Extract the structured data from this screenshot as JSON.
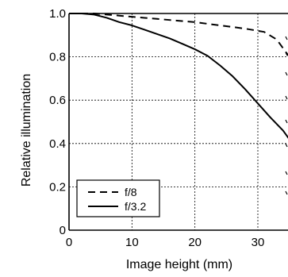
{
  "chart_data": {
    "type": "line",
    "xlabel": "Image height (mm)",
    "ylabel": "Relative illumination",
    "xlim": [
      0,
      35
    ],
    "ylim": [
      0,
      1.0
    ],
    "x_ticks": [
      "0",
      "10",
      "20",
      "30"
    ],
    "x_tick_values": [
      0,
      10,
      20,
      30
    ],
    "y_ticks": [
      "0",
      "0.2",
      "0.4",
      "0.6",
      "0.8",
      "1.0"
    ],
    "y_tick_values": [
      0,
      0.2,
      0.4,
      0.6,
      0.8,
      1.0
    ],
    "grid": true,
    "legend_position": "bottom-left",
    "series": [
      {
        "name": "f/8",
        "style": "dashed",
        "color": "#000000",
        "x": [
          0,
          4,
          8,
          12,
          16,
          20,
          24,
          28,
          31,
          33,
          34,
          35
        ],
        "y": [
          1.0,
          1.0,
          0.99,
          0.98,
          0.97,
          0.96,
          0.945,
          0.93,
          0.915,
          0.88,
          0.84,
          0.8
        ]
      },
      {
        "name": "f/3.2",
        "style": "solid",
        "color": "#000000",
        "x": [
          0,
          2,
          4,
          6,
          8,
          10,
          12,
          14,
          16,
          18,
          20,
          22,
          24,
          26,
          28,
          30,
          32,
          34,
          35
        ],
        "y": [
          1.0,
          1.0,
          0.995,
          0.98,
          0.96,
          0.945,
          0.925,
          0.905,
          0.885,
          0.86,
          0.835,
          0.805,
          0.76,
          0.71,
          0.65,
          0.585,
          0.52,
          0.46,
          0.42
        ]
      }
    ]
  }
}
